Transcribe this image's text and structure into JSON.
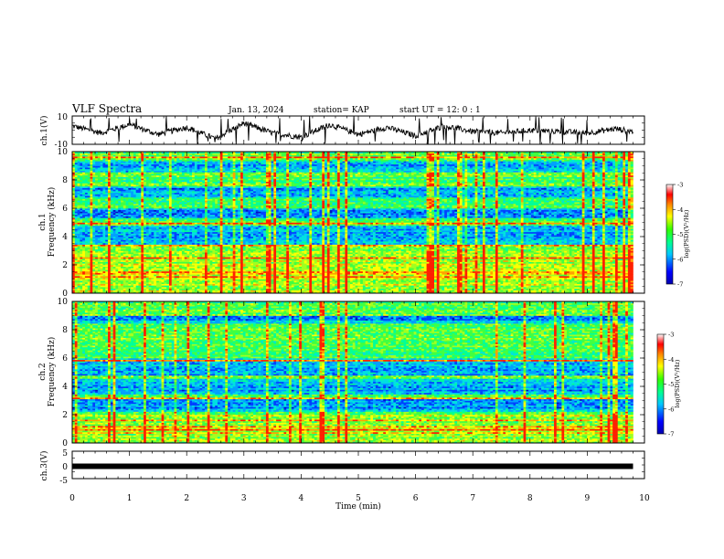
{
  "header": {
    "title": "VLF Spectra",
    "date": "Jan. 13, 2024",
    "station": "station= KAP",
    "start": "start  UT  =   12: 0  : 1"
  },
  "colors": {
    "axis": "#000000",
    "waveform": "#000000",
    "colormap": [
      "#ffffff",
      "#0000cc",
      "#0000ff",
      "#00a0ff",
      "#00e0e0",
      "#00ff66",
      "#66ff00",
      "#ffff00",
      "#ff8800",
      "#ff0000"
    ]
  },
  "chart_data": [
    {
      "type": "line",
      "panel": "ch1-waveform",
      "ylabel": "ch.1(V)",
      "ylim": [
        -10,
        10
      ],
      "yticks": [
        "10",
        "-10"
      ],
      "xlim": [
        0,
        10
      ],
      "x_unit": "min",
      "description_values": {
        "x": [
          0,
          0.5,
          1,
          1.5,
          2,
          2.5,
          3,
          3.5,
          4,
          4.5,
          5,
          5.5,
          6,
          6.5,
          7,
          7.5,
          8,
          8.5,
          9,
          9.5,
          9.8
        ],
        "y": [
          3,
          -2,
          4,
          -3,
          2,
          -6,
          5,
          -2,
          -5,
          4,
          -3,
          2,
          -4,
          3,
          -1,
          -2,
          0,
          -1,
          -2,
          1,
          -1
        ]
      }
    },
    {
      "type": "heatmap",
      "panel": "ch1-spectrogram",
      "ylabel": "Frequency (kHz)",
      "channel_label": "ch.1",
      "ylim": [
        0,
        10
      ],
      "yticks": [
        "0",
        "2",
        "4",
        "6",
        "8",
        "10"
      ],
      "xlim": [
        0,
        9.8
      ],
      "colorbar": {
        "label": "log(PSD)(V²/Hz)",
        "range": [
          -7,
          -3
        ],
        "ticks": [
          "-3",
          "-4",
          "-5",
          "-6",
          "-7"
        ]
      },
      "quiet_bands_khz": [
        [
          3.5,
          4.8
        ],
        [
          5.3,
          6.0
        ],
        [
          6.8,
          7.6
        ],
        [
          8.6,
          9.3
        ]
      ],
      "active_bands_khz": [
        [
          0,
          3.0
        ]
      ]
    },
    {
      "type": "heatmap",
      "panel": "ch2-spectrogram",
      "ylabel": "Frequency (kHz)",
      "channel_label": "ch.2",
      "ylim": [
        0,
        10
      ],
      "yticks": [
        "0",
        "2",
        "4",
        "6",
        "8",
        "10"
      ],
      "xlim": [
        0,
        9.8
      ],
      "colorbar": {
        "label": "log(PSD)(V²/Hz)",
        "range": [
          -7,
          -3
        ],
        "ticks": [
          "-3",
          "-4",
          "-5",
          "-6",
          "-7"
        ]
      },
      "quiet_bands_khz": [
        [
          2.2,
          3.2
        ],
        [
          3.5,
          4.5
        ],
        [
          4.8,
          6.0
        ],
        [
          8.4,
          9.0
        ]
      ],
      "active_bands_khz": [
        [
          0,
          2.0
        ]
      ]
    },
    {
      "type": "line",
      "panel": "ch3-waveform",
      "ylabel": "ch.3(V)",
      "ylim": [
        -5,
        5
      ],
      "yticks": [
        "5",
        "0",
        "-5"
      ],
      "xlim": [
        0,
        10
      ],
      "x": [
        0,
        9.8
      ],
      "y": [
        0,
        0
      ]
    }
  ],
  "xaxis": {
    "label": "Time (min)",
    "ticks": [
      "0",
      "1",
      "2",
      "3",
      "4",
      "5",
      "6",
      "7",
      "8",
      "9",
      "10"
    ],
    "range": [
      0,
      10
    ]
  }
}
